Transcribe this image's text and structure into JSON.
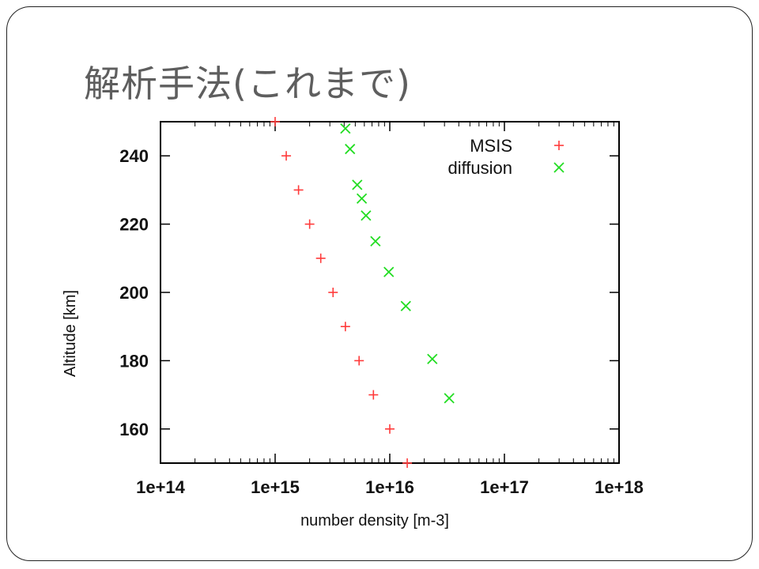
{
  "slide": {
    "title": "解析手法(これまで)"
  },
  "chart_data": {
    "type": "scatter",
    "title": "",
    "xlabel": "number density [m-3]",
    "ylabel": "Altitude [km]",
    "x_scale": "log",
    "xlim": [
      100000000000000.0,
      1e+18
    ],
    "ylim": [
      150,
      250
    ],
    "x_ticks": [
      {
        "value": 100000000000000.0,
        "label": "1e+14"
      },
      {
        "value": 1000000000000000.0,
        "label": "1e+15"
      },
      {
        "value": 1e+16,
        "label": "1e+16"
      },
      {
        "value": 1e+17,
        "label": "1e+17"
      },
      {
        "value": 1e+18,
        "label": "1e+18"
      }
    ],
    "y_ticks": [
      {
        "value": 160,
        "label": "160"
      },
      {
        "value": 180,
        "label": "180"
      },
      {
        "value": 200,
        "label": "200"
      },
      {
        "value": 220,
        "label": "220"
      },
      {
        "value": 240,
        "label": "240"
      }
    ],
    "legend_position": "top-right",
    "grid": false,
    "series": [
      {
        "name": "MSIS",
        "color": "#ff3b3b",
        "marker": "plus",
        "points": [
          {
            "x": 1000000000000000.0,
            "y": 250
          },
          {
            "x": 1250000000000000.0,
            "y": 240
          },
          {
            "x": 1600000000000000.0,
            "y": 230
          },
          {
            "x": 2000000000000000.0,
            "y": 220
          },
          {
            "x": 2500000000000000.0,
            "y": 210
          },
          {
            "x": 3200000000000000.0,
            "y": 200
          },
          {
            "x": 4100000000000000.0,
            "y": 190
          },
          {
            "x": 5400000000000000.0,
            "y": 180
          },
          {
            "x": 7200000000000000.0,
            "y": 170
          },
          {
            "x": 1e+16,
            "y": 160
          },
          {
            "x": 1.42e+16,
            "y": 150
          }
        ]
      },
      {
        "name": "diffusion",
        "color": "#22dd22",
        "marker": "cross",
        "points": [
          {
            "x": 4100000000000000.0,
            "y": 248
          },
          {
            "x": 4500000000000000.0,
            "y": 242
          },
          {
            "x": 5200000000000000.0,
            "y": 231.5
          },
          {
            "x": 5700000000000000.0,
            "y": 227.5
          },
          {
            "x": 6200000000000000.0,
            "y": 222.5
          },
          {
            "x": 7500000000000000.0,
            "y": 215
          },
          {
            "x": 9800000000000000.0,
            "y": 206
          },
          {
            "x": 1.38e+16,
            "y": 196
          },
          {
            "x": 2.35e+16,
            "y": 180.5
          },
          {
            "x": 3.3e+16,
            "y": 169
          }
        ]
      }
    ]
  }
}
